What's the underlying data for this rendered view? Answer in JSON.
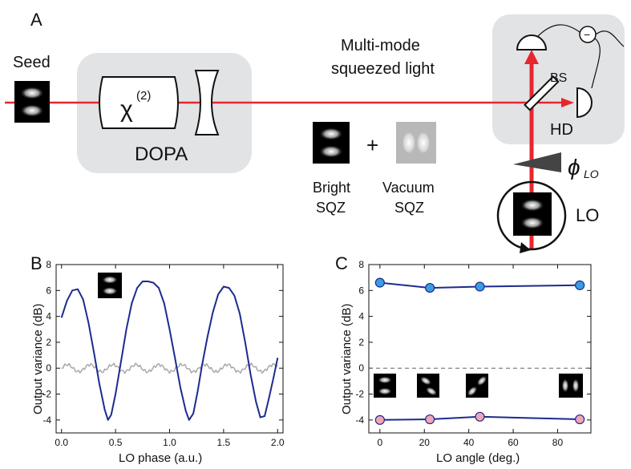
{
  "panel_a": {
    "panel_label": "A",
    "seed_label": "Seed",
    "crystal_label": "χ",
    "crystal_superscript": "(2)",
    "dopa_label": "DOPA",
    "beam_label_line1": "Multi-mode",
    "beam_label_line2": "squeezed light",
    "bright_label_line1": "Bright",
    "bright_label_line2": "SQZ",
    "plus": "+",
    "vacuum_label_line1": "Vacuum",
    "vacuum_label_line2": "SQZ",
    "bs_label": "BS",
    "hd_label": "HD",
    "minus": "−",
    "phase_symbol": "ϕ",
    "phase_subscript": "LO",
    "lo_label": "LO",
    "colors": {
      "beam": "#e8262d",
      "box": "#e2e3e5"
    }
  },
  "chart_data": [
    {
      "panel_label": "B",
      "type": "line",
      "xlabel": "LO phase (a.u.)",
      "ylabel": "Output variance (dB)",
      "xlim": [
        -0.05,
        2.05
      ],
      "ylim": [
        -5,
        8
      ],
      "xticks": [
        "0.0",
        "0.5",
        "1.0",
        "1.5",
        "2.0"
      ],
      "yticks": [
        "-4",
        "-2",
        "0",
        "2",
        "4",
        "6",
        "8"
      ],
      "series": [
        {
          "color": "#1c2b8f",
          "x": [
            0.0,
            0.05,
            0.1,
            0.15,
            0.2,
            0.25,
            0.3,
            0.35,
            0.4,
            0.43,
            0.46,
            0.5,
            0.55,
            0.6,
            0.65,
            0.7,
            0.75,
            0.8,
            0.85,
            0.9,
            0.95,
            1.0,
            1.05,
            1.1,
            1.15,
            1.18,
            1.22,
            1.26,
            1.3,
            1.35,
            1.4,
            1.45,
            1.5,
            1.55,
            1.6,
            1.65,
            1.7,
            1.75,
            1.8,
            1.84,
            1.88,
            1.92,
            1.96,
            2.0
          ],
          "values": [
            3.9,
            5.2,
            6.0,
            6.1,
            5.3,
            3.5,
            1.2,
            -1.2,
            -3.2,
            -4.0,
            -3.6,
            -2.0,
            0.5,
            3.0,
            5.0,
            6.2,
            6.7,
            6.7,
            6.6,
            6.2,
            5.0,
            3.0,
            0.8,
            -1.5,
            -3.3,
            -4.0,
            -3.5,
            -1.8,
            0.2,
            2.4,
            4.3,
            5.7,
            6.3,
            6.2,
            5.6,
            4.2,
            2.0,
            -0.5,
            -2.6,
            -3.8,
            -3.7,
            -2.3,
            -0.8,
            0.8
          ]
        },
        {
          "color": "#a9a9a9",
          "x": [
            0.0,
            2.0
          ],
          "values": [
            0.0,
            0.0
          ]
        }
      ]
    },
    {
      "panel_label": "C",
      "type": "line",
      "xlabel": "LO angle (deg.)",
      "ylabel": "Output variance (dB)",
      "xlim": [
        -5,
        95
      ],
      "ylim": [
        -5,
        8
      ],
      "xticks": [
        "0",
        "20",
        "40",
        "60",
        "80"
      ],
      "yticks": [
        "-4",
        "-2",
        "0",
        "2",
        "4",
        "6",
        "8"
      ],
      "series": [
        {
          "color": "#1c2b8f",
          "marker": "#3a9de0",
          "x": [
            0,
            22.5,
            45,
            90
          ],
          "values": [
            6.6,
            6.2,
            6.3,
            6.4
          ]
        },
        {
          "color": "#1c2b8f",
          "marker": "#f0a6b4",
          "x": [
            0,
            22.5,
            45,
            90
          ],
          "values": [
            -4.0,
            -3.95,
            -3.75,
            -3.95
          ]
        }
      ],
      "reference_line": 0
    }
  ]
}
